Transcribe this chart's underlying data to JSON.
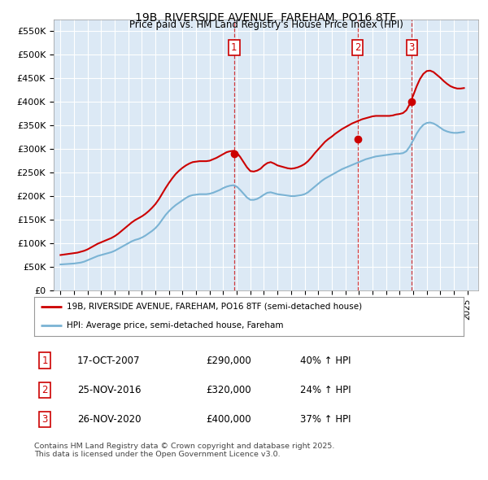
{
  "title": "19B, RIVERSIDE AVENUE, FAREHAM, PO16 8TF",
  "subtitle": "Price paid vs. HM Land Registry's House Price Index (HPI)",
  "ylabel_ticks": [
    "£0",
    "£50K",
    "£100K",
    "£150K",
    "£200K",
    "£250K",
    "£300K",
    "£350K",
    "£400K",
    "£450K",
    "£500K",
    "£550K"
  ],
  "ylim": [
    0,
    575000
  ],
  "xlim_start": 1994.5,
  "xlim_end": 2025.8,
  "background_color": "#dce9f5",
  "plot_bg_color": "#dce9f5",
  "red_line_color": "#cc0000",
  "blue_line_color": "#7ab3d4",
  "sales": [
    {
      "label": "1",
      "date": "17-OCT-2007",
      "price": 290000,
      "pct": "40%",
      "x_year": 2007.8
    },
    {
      "label": "2",
      "date": "25-NOV-2016",
      "price": 320000,
      "pct": "24%",
      "x_year": 2016.9
    },
    {
      "label": "3",
      "date": "26-NOV-2020",
      "price": 400000,
      "pct": "37%",
      "x_year": 2020.9
    }
  ],
  "legend_line1": "19B, RIVERSIDE AVENUE, FAREHAM, PO16 8TF (semi-detached house)",
  "legend_line2": "HPI: Average price, semi-detached house, Fareham",
  "footer": "Contains HM Land Registry data © Crown copyright and database right 2025.\nThis data is licensed under the Open Government Licence v3.0.",
  "hpi_data_x": [
    1995.0,
    1995.25,
    1995.5,
    1995.75,
    1996.0,
    1996.25,
    1996.5,
    1996.75,
    1997.0,
    1997.25,
    1997.5,
    1997.75,
    1998.0,
    1998.25,
    1998.5,
    1998.75,
    1999.0,
    1999.25,
    1999.5,
    1999.75,
    2000.0,
    2000.25,
    2000.5,
    2000.75,
    2001.0,
    2001.25,
    2001.5,
    2001.75,
    2002.0,
    2002.25,
    2002.5,
    2002.75,
    2003.0,
    2003.25,
    2003.5,
    2003.75,
    2004.0,
    2004.25,
    2004.5,
    2004.75,
    2005.0,
    2005.25,
    2005.5,
    2005.75,
    2006.0,
    2006.25,
    2006.5,
    2006.75,
    2007.0,
    2007.25,
    2007.5,
    2007.75,
    2008.0,
    2008.25,
    2008.5,
    2008.75,
    2009.0,
    2009.25,
    2009.5,
    2009.75,
    2010.0,
    2010.25,
    2010.5,
    2010.75,
    2011.0,
    2011.25,
    2011.5,
    2011.75,
    2012.0,
    2012.25,
    2012.5,
    2012.75,
    2013.0,
    2013.25,
    2013.5,
    2013.75,
    2014.0,
    2014.25,
    2014.5,
    2014.75,
    2015.0,
    2015.25,
    2015.5,
    2015.75,
    2016.0,
    2016.25,
    2016.5,
    2016.75,
    2017.0,
    2017.25,
    2017.5,
    2017.75,
    2018.0,
    2018.25,
    2018.5,
    2018.75,
    2019.0,
    2019.25,
    2019.5,
    2019.75,
    2020.0,
    2020.25,
    2020.5,
    2020.75,
    2021.0,
    2021.25,
    2021.5,
    2021.75,
    2022.0,
    2022.25,
    2022.5,
    2022.75,
    2023.0,
    2023.25,
    2023.5,
    2023.75,
    2024.0,
    2024.25,
    2024.5,
    2024.75
  ],
  "hpi_data_y": [
    55000,
    55500,
    56000,
    56500,
    57000,
    58000,
    59000,
    61000,
    64000,
    67000,
    70000,
    73000,
    75000,
    77000,
    79000,
    81000,
    84000,
    88000,
    92000,
    96000,
    100000,
    104000,
    107000,
    109000,
    112000,
    116000,
    121000,
    126000,
    132000,
    140000,
    150000,
    160000,
    168000,
    175000,
    181000,
    186000,
    191000,
    196000,
    200000,
    202000,
    203000,
    204000,
    204000,
    204000,
    205000,
    207000,
    210000,
    213000,
    217000,
    220000,
    222000,
    223000,
    220000,
    213000,
    205000,
    197000,
    192000,
    192000,
    194000,
    198000,
    203000,
    207000,
    208000,
    206000,
    204000,
    203000,
    202000,
    201000,
    200000,
    200000,
    201000,
    202000,
    204000,
    208000,
    214000,
    220000,
    226000,
    232000,
    237000,
    241000,
    245000,
    249000,
    253000,
    257000,
    260000,
    263000,
    266000,
    269000,
    272000,
    275000,
    278000,
    280000,
    282000,
    284000,
    285000,
    286000,
    287000,
    288000,
    289000,
    290000,
    290000,
    291000,
    295000,
    305000,
    318000,
    332000,
    343000,
    351000,
    355000,
    356000,
    354000,
    350000,
    345000,
    340000,
    337000,
    335000,
    334000,
    334000,
    335000,
    336000
  ],
  "price_data_x": [
    1995.0,
    1995.25,
    1995.5,
    1995.75,
    1996.0,
    1996.25,
    1996.5,
    1996.75,
    1997.0,
    1997.25,
    1997.5,
    1997.75,
    1998.0,
    1998.25,
    1998.5,
    1998.75,
    1999.0,
    1999.25,
    1999.5,
    1999.75,
    2000.0,
    2000.25,
    2000.5,
    2000.75,
    2001.0,
    2001.25,
    2001.5,
    2001.75,
    2002.0,
    2002.25,
    2002.5,
    2002.75,
    2003.0,
    2003.25,
    2003.5,
    2003.75,
    2004.0,
    2004.25,
    2004.5,
    2004.75,
    2005.0,
    2005.25,
    2005.5,
    2005.75,
    2006.0,
    2006.25,
    2006.5,
    2006.75,
    2007.0,
    2007.25,
    2007.5,
    2007.75,
    2008.0,
    2008.25,
    2008.5,
    2008.75,
    2009.0,
    2009.25,
    2009.5,
    2009.75,
    2010.0,
    2010.25,
    2010.5,
    2010.75,
    2011.0,
    2011.25,
    2011.5,
    2011.75,
    2012.0,
    2012.25,
    2012.5,
    2012.75,
    2013.0,
    2013.25,
    2013.5,
    2013.75,
    2014.0,
    2014.25,
    2014.5,
    2014.75,
    2015.0,
    2015.25,
    2015.5,
    2015.75,
    2016.0,
    2016.25,
    2016.5,
    2016.75,
    2017.0,
    2017.25,
    2017.5,
    2017.75,
    2018.0,
    2018.25,
    2018.5,
    2018.75,
    2019.0,
    2019.25,
    2019.5,
    2019.75,
    2020.0,
    2020.25,
    2020.5,
    2020.75,
    2021.0,
    2021.25,
    2021.5,
    2021.75,
    2022.0,
    2022.25,
    2022.5,
    2022.75,
    2023.0,
    2023.25,
    2023.5,
    2023.75,
    2024.0,
    2024.25,
    2024.5,
    2024.75
  ],
  "price_data_y": [
    75000,
    76000,
    77000,
    78000,
    79000,
    80000,
    82000,
    84000,
    87000,
    91000,
    95000,
    99000,
    102000,
    105000,
    108000,
    111000,
    115000,
    120000,
    126000,
    132000,
    138000,
    144000,
    149000,
    153000,
    157000,
    162000,
    168000,
    175000,
    183000,
    193000,
    205000,
    217000,
    228000,
    238000,
    247000,
    254000,
    260000,
    265000,
    269000,
    272000,
    273000,
    274000,
    274000,
    274000,
    275000,
    278000,
    281000,
    285000,
    289000,
    293000,
    295000,
    296000,
    292000,
    283000,
    272000,
    261000,
    253000,
    252000,
    254000,
    258000,
    265000,
    270000,
    272000,
    269000,
    265000,
    263000,
    261000,
    259000,
    258000,
    259000,
    261000,
    264000,
    268000,
    274000,
    282000,
    291000,
    299000,
    307000,
    315000,
    321000,
    326000,
    332000,
    337000,
    342000,
    346000,
    350000,
    354000,
    357000,
    360000,
    363000,
    365000,
    367000,
    369000,
    370000,
    370000,
    370000,
    370000,
    370000,
    371000,
    373000,
    374000,
    376000,
    382000,
    395000,
    413000,
    432000,
    448000,
    459000,
    465000,
    466000,
    463000,
    457000,
    451000,
    444000,
    438000,
    433000,
    430000,
    428000,
    428000,
    429000
  ]
}
